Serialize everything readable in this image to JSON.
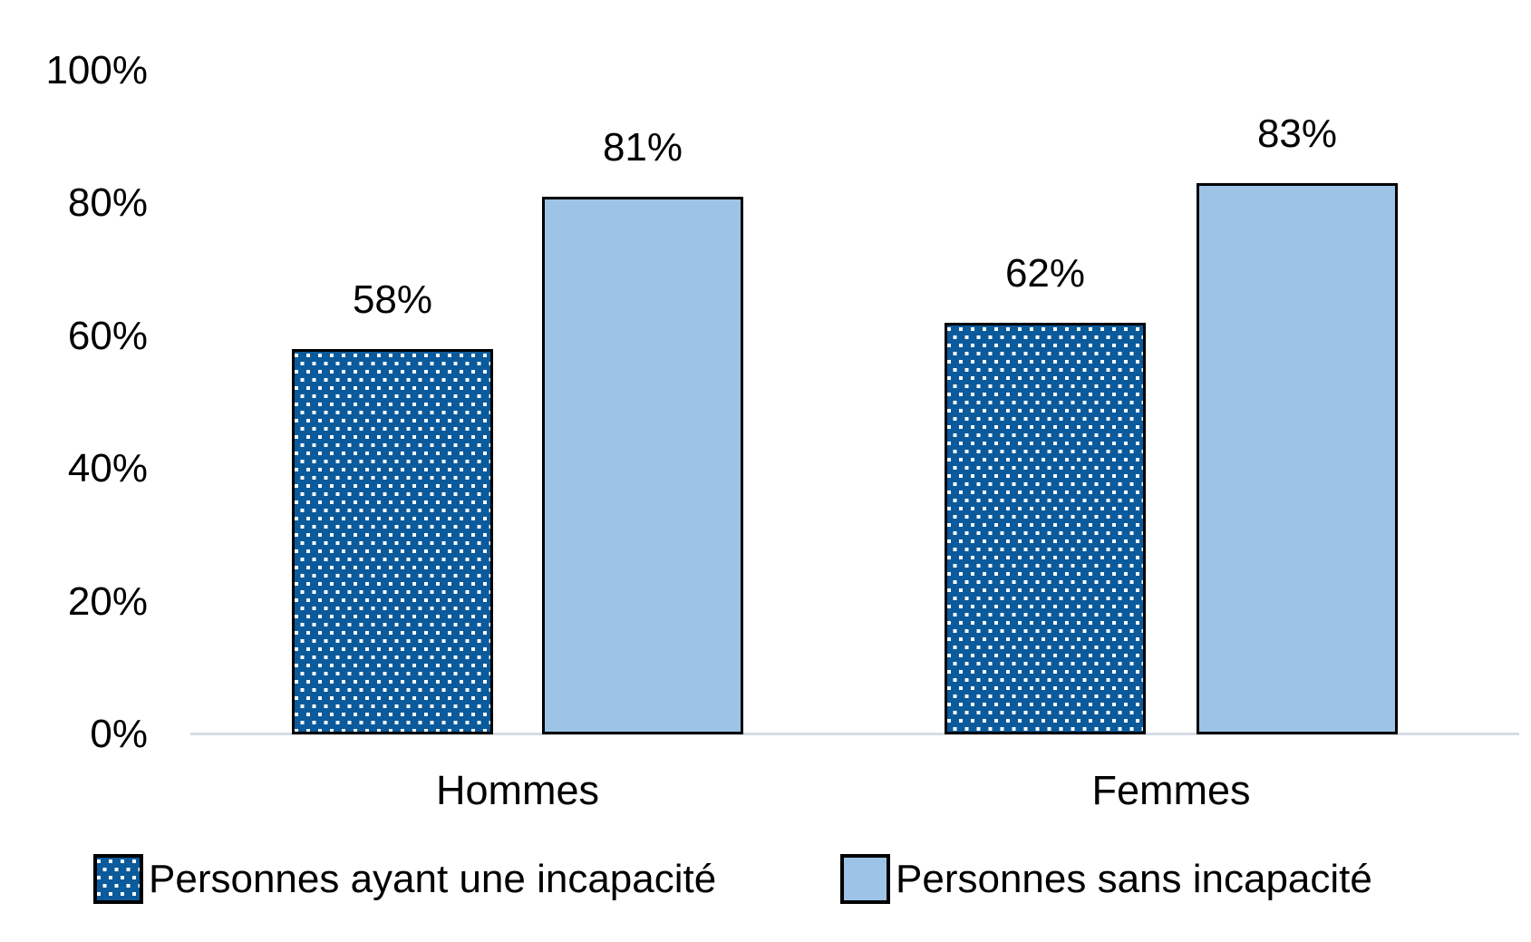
{
  "chart_data": {
    "type": "bar",
    "categories": [
      "Hommes",
      "Femmes"
    ],
    "series": [
      {
        "name": "Personnes ayant une incapacité",
        "values": [
          58,
          62
        ],
        "pattern": "dotted",
        "color": "#0B5A9C",
        "dot_color": "#FFFFFF"
      },
      {
        "name": "Personnes sans incapacité",
        "values": [
          81,
          83
        ],
        "pattern": "solid",
        "color": "#9DC3E6"
      }
    ],
    "value_suffix": "%",
    "yticks": [
      0,
      20,
      40,
      60,
      80,
      100
    ],
    "ylim": [
      0,
      100
    ],
    "grid": false,
    "data_labels": true,
    "legend_position": "bottom",
    "bar_border_color": "#000000",
    "axis_line_color": "#D6DCE5",
    "text_color": "#000000",
    "background_color": "#FFFFFF"
  }
}
